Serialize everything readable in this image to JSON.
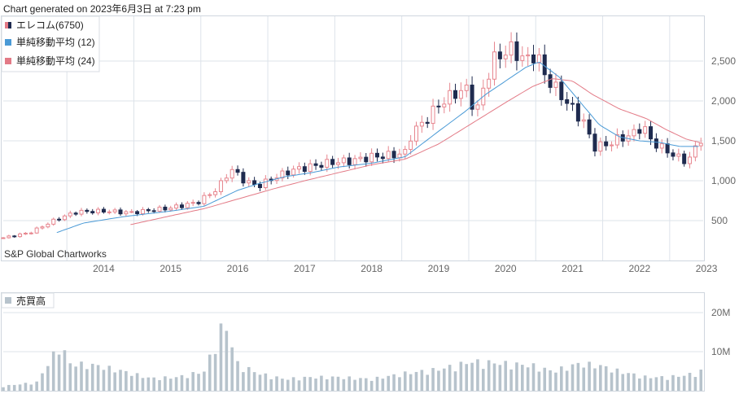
{
  "header": {
    "generated": "Chart generated on 2023年6月3日 at 7:23 pm"
  },
  "watermark": "S&P Global Chartworks",
  "colors": {
    "up": "#e7868f",
    "down": "#1f2b4f",
    "ma12": "#4a9ad6",
    "ma24": "#e37a86",
    "volume": "#b7c3cc",
    "grid": "#dde3ea",
    "axis_text": "#666666"
  },
  "legend": {
    "items": [
      {
        "label": "エレコム(6750)",
        "icon": "candlestick-icon",
        "color": "#e37a86"
      },
      {
        "label": "単純移動平均 (12)",
        "icon": "square-icon",
        "color": "#4a9ad6"
      },
      {
        "label": "単純移動平均 (24)",
        "icon": "square-icon",
        "color": "#e37a86"
      }
    ]
  },
  "chart_data": [
    {
      "type": "candlestick",
      "series_name": "エレコム(6750)",
      "x_tick_labels": [
        "2014",
        "2015",
        "2016",
        "2017",
        "2018",
        "2019",
        "2020",
        "2021",
        "2022",
        "2023"
      ],
      "y_tick_labels": [
        "500",
        "1,000",
        "1,500",
        "2,000",
        "2,500"
      ],
      "y_ticks": [
        500,
        1000,
        1500,
        2000,
        2500
      ],
      "ylim": [
        0,
        3000
      ],
      "x_start": 2013.0,
      "x_end": 2023.45,
      "grid": true,
      "legend_position": "top-left",
      "candle_anchors": [
        [
          2013.0,
          285
        ],
        [
          2013.4,
          350
        ],
        [
          2013.8,
          520
        ],
        [
          2014.1,
          610
        ],
        [
          2014.5,
          620
        ],
        [
          2014.9,
          600
        ],
        [
          2015.2,
          630
        ],
        [
          2015.5,
          660
        ],
        [
          2015.9,
          730
        ],
        [
          2016.2,
          900
        ],
        [
          2016.4,
          1150
        ],
        [
          2016.6,
          1000
        ],
        [
          2016.8,
          930
        ],
        [
          2017.0,
          1020
        ],
        [
          2017.3,
          1130
        ],
        [
          2017.6,
          1180
        ],
        [
          2017.9,
          1230
        ],
        [
          2018.2,
          1250
        ],
        [
          2018.5,
          1300
        ],
        [
          2018.8,
          1320
        ],
        [
          2019.0,
          1350
        ],
        [
          2019.1,
          1600
        ],
        [
          2019.3,
          1750
        ],
        [
          2019.5,
          1950
        ],
        [
          2019.75,
          2100
        ],
        [
          2019.95,
          2150
        ],
        [
          2020.05,
          1800
        ],
        [
          2020.2,
          2250
        ],
        [
          2020.35,
          2550
        ],
        [
          2020.6,
          2650
        ],
        [
          2020.8,
          2500
        ],
        [
          2020.95,
          2600
        ],
        [
          2021.1,
          2300
        ],
        [
          2021.3,
          2100
        ],
        [
          2021.5,
          1900
        ],
        [
          2021.7,
          1700
        ],
        [
          2021.8,
          1420
        ],
        [
          2022.0,
          1450
        ],
        [
          2022.2,
          1530
        ],
        [
          2022.4,
          1580
        ],
        [
          2022.55,
          1700
        ],
        [
          2022.65,
          1520
        ],
        [
          2022.85,
          1400
        ],
        [
          2023.0,
          1330
        ],
        [
          2023.15,
          1250
        ],
        [
          2023.28,
          1300
        ],
        [
          2023.4,
          1530
        ]
      ],
      "sma_12_anchors": [
        [
          2013.8,
          350
        ],
        [
          2014.2,
          470
        ],
        [
          2014.8,
          550
        ],
        [
          2015.5,
          620
        ],
        [
          2016.0,
          680
        ],
        [
          2016.5,
          880
        ],
        [
          2016.8,
          960
        ],
        [
          2017.2,
          1050
        ],
        [
          2017.6,
          1100
        ],
        [
          2018.0,
          1170
        ],
        [
          2018.5,
          1220
        ],
        [
          2019.0,
          1300
        ],
        [
          2019.5,
          1620
        ],
        [
          2019.9,
          1870
        ],
        [
          2020.2,
          2080
        ],
        [
          2020.5,
          2250
        ],
        [
          2020.8,
          2420
        ],
        [
          2021.0,
          2490
        ],
        [
          2021.3,
          2300
        ],
        [
          2021.6,
          2000
        ],
        [
          2021.9,
          1700
        ],
        [
          2022.2,
          1550
        ],
        [
          2022.5,
          1500
        ],
        [
          2022.8,
          1480
        ],
        [
          2023.1,
          1430
        ],
        [
          2023.4,
          1430
        ]
      ],
      "sma_24_anchors": [
        [
          2014.9,
          450
        ],
        [
          2015.5,
          560
        ],
        [
          2016.0,
          650
        ],
        [
          2016.5,
          770
        ],
        [
          2017.0,
          890
        ],
        [
          2017.5,
          1000
        ],
        [
          2018.0,
          1100
        ],
        [
          2018.5,
          1200
        ],
        [
          2019.0,
          1270
        ],
        [
          2019.5,
          1460
        ],
        [
          2020.0,
          1720
        ],
        [
          2020.5,
          1980
        ],
        [
          2020.9,
          2180
        ],
        [
          2021.2,
          2280
        ],
        [
          2021.5,
          2250
        ],
        [
          2021.8,
          2080
        ],
        [
          2022.2,
          1900
        ],
        [
          2022.6,
          1780
        ],
        [
          2022.9,
          1640
        ],
        [
          2023.2,
          1520
        ],
        [
          2023.4,
          1480
        ]
      ]
    },
    {
      "type": "bar",
      "series_name": "売買高",
      "y_tick_labels": [
        "10M",
        "20M"
      ],
      "y_ticks": [
        10000000,
        20000000
      ],
      "ylim": [
        0,
        25000000
      ],
      "grid": true,
      "volume_anchors": [
        [
          2013.0,
          1200000
        ],
        [
          2013.5,
          2200000
        ],
        [
          2013.85,
          12000000
        ],
        [
          2014.0,
          7000000
        ],
        [
          2014.4,
          6500000
        ],
        [
          2014.8,
          5000000
        ],
        [
          2015.2,
          3200000
        ],
        [
          2015.6,
          3500000
        ],
        [
          2016.0,
          5000000
        ],
        [
          2016.3,
          18000000
        ],
        [
          2016.5,
          7000000
        ],
        [
          2016.8,
          4500000
        ],
        [
          2017.2,
          3000000
        ],
        [
          2017.6,
          3500000
        ],
        [
          2018.0,
          3500000
        ],
        [
          2018.5,
          3000000
        ],
        [
          2019.0,
          4500000
        ],
        [
          2019.5,
          5500000
        ],
        [
          2020.0,
          7500000
        ],
        [
          2020.5,
          7000000
        ],
        [
          2020.9,
          6500000
        ],
        [
          2021.2,
          5000000
        ],
        [
          2021.6,
          7000000
        ],
        [
          2021.9,
          6500000
        ],
        [
          2022.2,
          5000000
        ],
        [
          2022.6,
          3500000
        ],
        [
          2022.9,
          3500000
        ],
        [
          2023.2,
          4000000
        ],
        [
          2023.4,
          5000000
        ]
      ]
    }
  ],
  "volume_legend": {
    "label": "売買高",
    "icon": "square-icon",
    "color": "#b7c3cc"
  }
}
